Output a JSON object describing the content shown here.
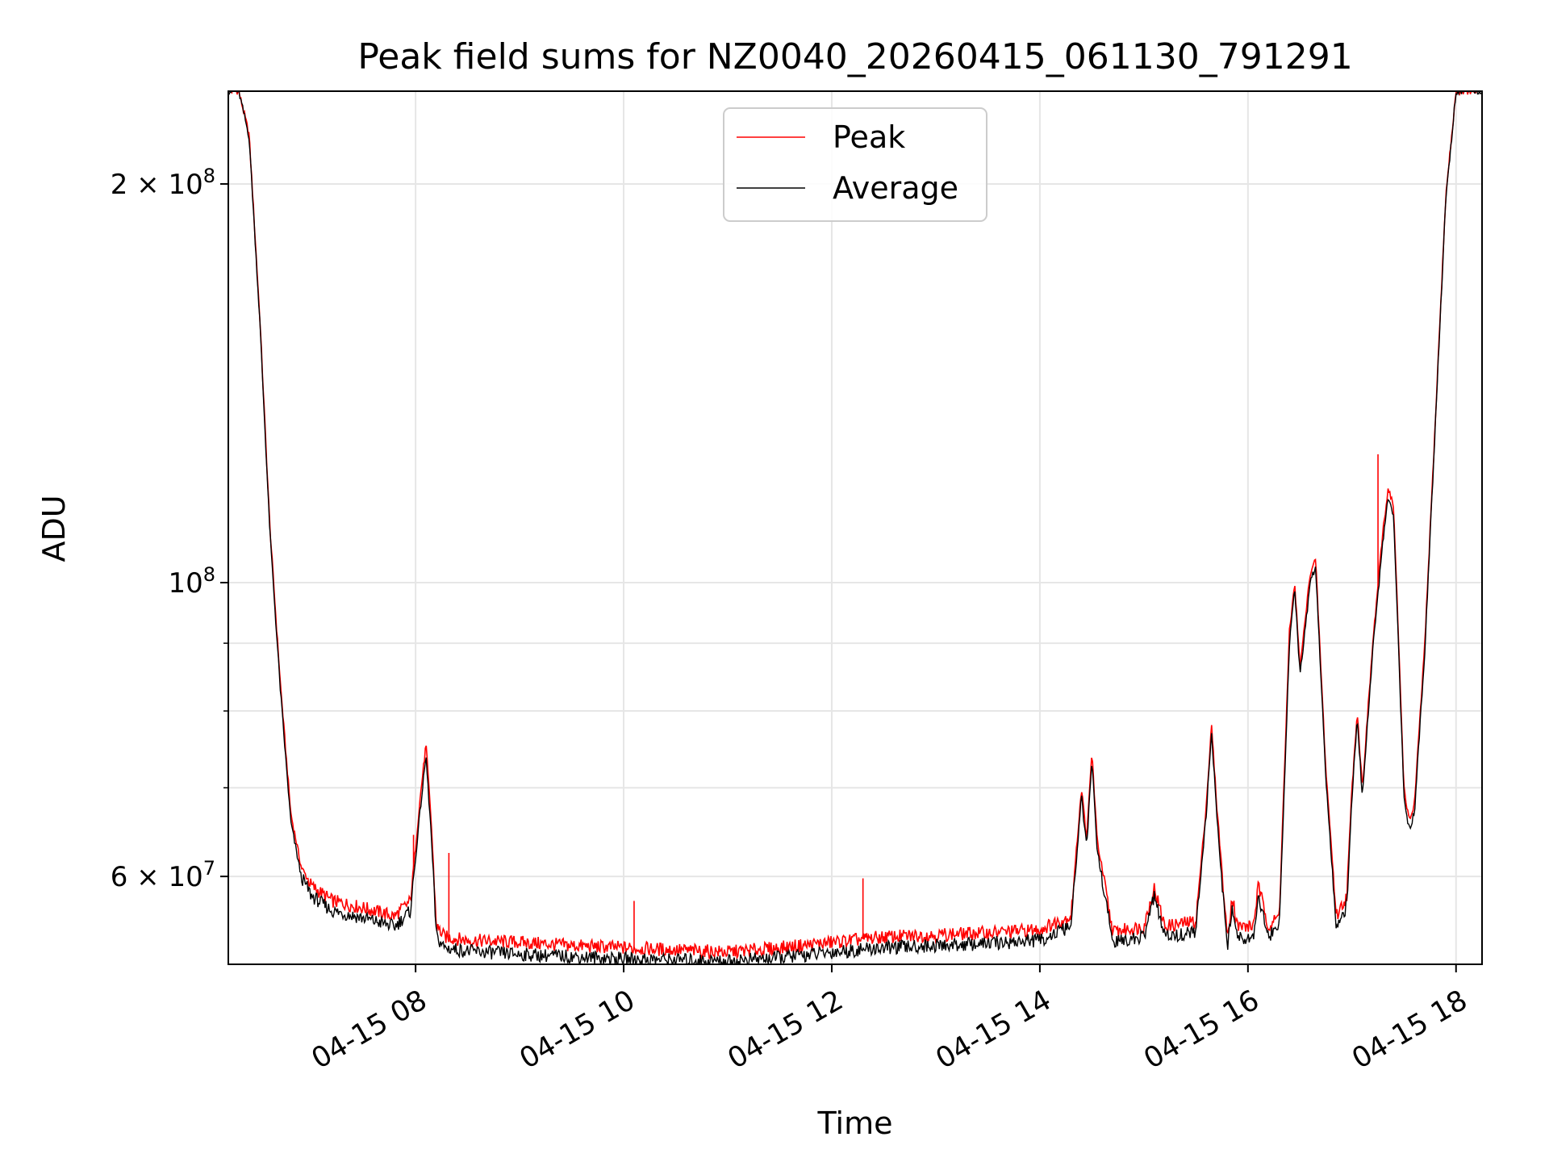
{
  "chart_data": {
    "type": "line",
    "title": "Peak field sums for NZ0040_20260415_061130_791291",
    "xlabel": "Time",
    "ylabel": "ADU",
    "yscale": "log",
    "ylim": [
      51500000,
      235000000
    ],
    "xlim_hours": [
      6.2,
      18.25
    ],
    "grid": true,
    "legend_position": "top-center",
    "x_ticks": [
      {
        "hour": 8,
        "label": "04-15 08"
      },
      {
        "hour": 10,
        "label": "04-15 10"
      },
      {
        "hour": 12,
        "label": "04-15 12"
      },
      {
        "hour": 14,
        "label": "04-15 14"
      },
      {
        "hour": 16,
        "label": "04-15 16"
      },
      {
        "hour": 18,
        "label": "04-15 18"
      }
    ],
    "y_ticks": [
      {
        "value": 200000000,
        "base": "2 × 10",
        "exp": "8"
      },
      {
        "value": 100000000,
        "base": "10",
        "exp": "8"
      },
      {
        "value": 60000000,
        "base": "6 × 10",
        "exp": "7"
      }
    ],
    "y_minor_ticks": [
      70000000,
      80000000,
      90000000
    ],
    "series": [
      {
        "name": "Peak",
        "color": "#ff0000",
        "x_hours": [
          6.2,
          6.3,
          6.4,
          6.5,
          6.6,
          6.7,
          6.8,
          6.9,
          7.0,
          7.2,
          7.5,
          7.8,
          7.95,
          8.05,
          8.1,
          8.15,
          8.2,
          8.28,
          8.5,
          9.0,
          9.5,
          10.0,
          10.5,
          11.0,
          11.5,
          12.0,
          12.5,
          13.0,
          13.5,
          14.0,
          14.3,
          14.4,
          14.45,
          14.5,
          14.55,
          14.7,
          15.0,
          15.1,
          15.2,
          15.5,
          15.6,
          15.65,
          15.7,
          15.8,
          15.85,
          15.9,
          16.05,
          16.1,
          16.2,
          16.3,
          16.4,
          16.45,
          16.5,
          16.6,
          16.65,
          16.75,
          16.85,
          16.95,
          17.0,
          17.05,
          17.1,
          17.2,
          17.3,
          17.35,
          17.4,
          17.5,
          17.55,
          17.6,
          17.7,
          17.8,
          17.9,
          18.0,
          18.25
        ],
        "values": [
          235000000,
          235000000,
          218000000,
          160000000,
          110000000,
          84000000,
          67000000,
          61000000,
          59000000,
          57500000,
          56800000,
          56000000,
          57500000,
          69500000,
          75500000,
          66000000,
          55000000,
          54000000,
          53700000,
          53500000,
          53200000,
          53000000,
          52800000,
          52600000,
          53000000,
          53500000,
          54000000,
          54200000,
          54400000,
          54700000,
          56000000,
          70000000,
          64000000,
          74500000,
          64000000,
          54500000,
          55000000,
          58800000,
          55000000,
          55500000,
          68000000,
          78000000,
          68000000,
          54000000,
          58000000,
          55000000,
          55000000,
          59000000,
          55000000,
          56000000,
          92000000,
          100000000,
          86000000,
          102000000,
          104000000,
          72000000,
          56000000,
          58000000,
          70000000,
          80000000,
          70000000,
          90000000,
          110000000,
          118000000,
          114000000,
          70000000,
          66000000,
          68000000,
          90000000,
          132000000,
          195000000,
          235000000,
          235000000
        ]
      },
      {
        "name": "Average",
        "color": "#000000",
        "x_hours": [
          6.2,
          6.3,
          6.4,
          6.5,
          6.6,
          6.7,
          6.8,
          6.9,
          7.0,
          7.2,
          7.5,
          7.8,
          7.95,
          8.05,
          8.1,
          8.15,
          8.2,
          8.28,
          8.5,
          9.0,
          9.5,
          10.0,
          10.5,
          11.0,
          11.5,
          12.0,
          12.5,
          13.0,
          13.5,
          14.0,
          14.3,
          14.4,
          14.45,
          14.5,
          14.55,
          14.7,
          15.0,
          15.1,
          15.2,
          15.5,
          15.6,
          15.65,
          15.7,
          15.8,
          15.85,
          15.9,
          16.05,
          16.1,
          16.2,
          16.3,
          16.4,
          16.45,
          16.5,
          16.6,
          16.65,
          16.75,
          16.85,
          16.95,
          17.0,
          17.05,
          17.1,
          17.2,
          17.3,
          17.35,
          17.4,
          17.5,
          17.55,
          17.6,
          17.7,
          17.8,
          17.9,
          18.0,
          18.25
        ],
        "values": [
          235000000,
          235000000,
          217000000,
          159000000,
          109000000,
          83000000,
          66000000,
          60000000,
          58000000,
          56500000,
          55800000,
          55000000,
          56500000,
          68000000,
          74000000,
          64500000,
          54000000,
          53000000,
          52700000,
          52400000,
          52200000,
          52000000,
          51900000,
          51800000,
          52100000,
          52600000,
          53000000,
          53200000,
          53400000,
          53700000,
          55000000,
          69000000,
          63000000,
          73500000,
          63000000,
          53500000,
          54000000,
          58000000,
          54000000,
          54500000,
          67000000,
          77000000,
          67000000,
          53000000,
          57000000,
          54000000,
          54000000,
          58000000,
          54000000,
          55000000,
          90000000,
          99000000,
          85000000,
          100000000,
          103000000,
          71000000,
          55000000,
          57000000,
          69000000,
          79000000,
          69000000,
          89000000,
          108000000,
          116000000,
          112000000,
          69000000,
          65000000,
          67000000,
          89000000,
          131000000,
          194000000,
          235000000,
          235000000
        ]
      }
    ],
    "spikes": [
      {
        "series": "Peak",
        "hour": 7.98,
        "value": 64500000
      },
      {
        "series": "Peak",
        "hour": 8.32,
        "value": 62500000
      },
      {
        "series": "Peak",
        "hour": 10.1,
        "value": 57500000
      },
      {
        "series": "Peak",
        "hour": 12.3,
        "value": 59800000
      },
      {
        "series": "Peak",
        "hour": 17.25,
        "value": 125000000
      }
    ]
  }
}
